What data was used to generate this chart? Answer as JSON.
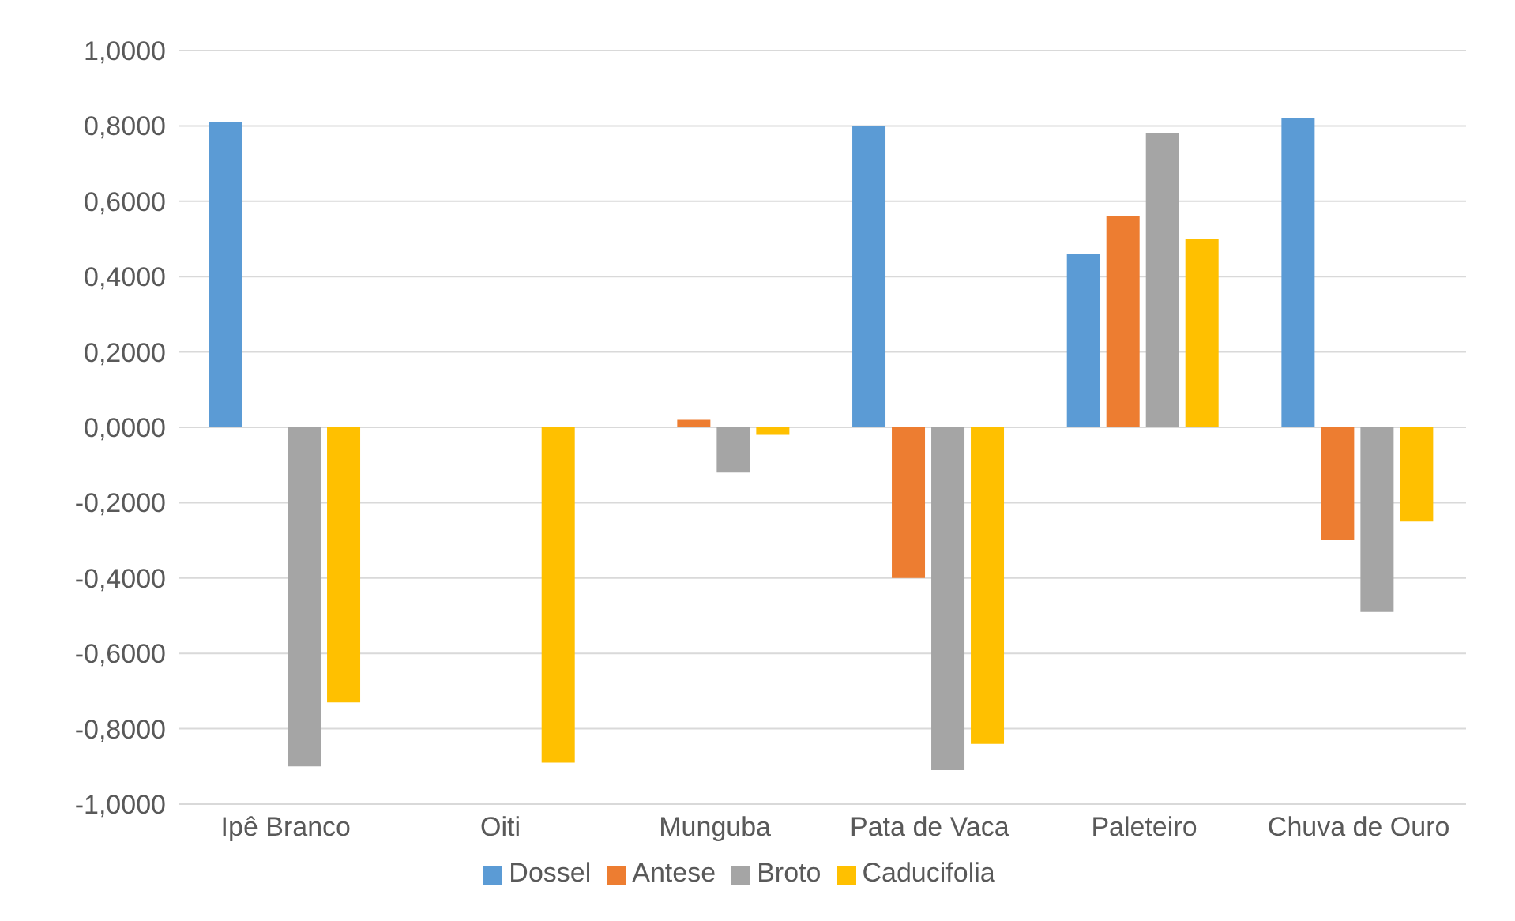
{
  "chart_data": {
    "type": "bar",
    "categories": [
      "Ipê Branco",
      "Oiti",
      "Munguba",
      "Pata de Vaca",
      "Paleteiro",
      "Chuva de Ouro"
    ],
    "series": [
      {
        "name": "Dossel",
        "color": "#5b9bd5",
        "values": [
          0.81,
          0,
          0,
          0.8,
          0.46,
          0.82
        ]
      },
      {
        "name": "Antese",
        "color": "#ed7d31",
        "values": [
          0,
          0,
          0.02,
          -0.4,
          0.56,
          -0.3
        ]
      },
      {
        "name": "Broto",
        "color": "#a5a5a5",
        "values": [
          -0.9,
          0,
          -0.12,
          -0.91,
          0.78,
          -0.49
        ]
      },
      {
        "name": "Caducifolia",
        "color": "#ffc000",
        "values": [
          -0.73,
          -0.89,
          -0.02,
          -0.84,
          0.5,
          -0.25
        ]
      }
    ],
    "ylim": [
      -1,
      1
    ],
    "yticks": [
      {
        "value": 1,
        "label": "1,0000"
      },
      {
        "value": 0.8,
        "label": "0,8000"
      },
      {
        "value": 0.6,
        "label": "0,6000"
      },
      {
        "value": 0.4,
        "label": "0,4000"
      },
      {
        "value": 0.2,
        "label": "0,2000"
      },
      {
        "value": 0,
        "label": "0,0000"
      },
      {
        "value": -0.2,
        "label": "-0,2000"
      },
      {
        "value": -0.4,
        "label": "-0,4000"
      },
      {
        "value": -0.6,
        "label": "-0,6000"
      },
      {
        "value": -0.8,
        "label": "-0,8000"
      },
      {
        "value": -1,
        "label": "-1,0000"
      }
    ],
    "grid": "y",
    "legend": "bottom"
  }
}
